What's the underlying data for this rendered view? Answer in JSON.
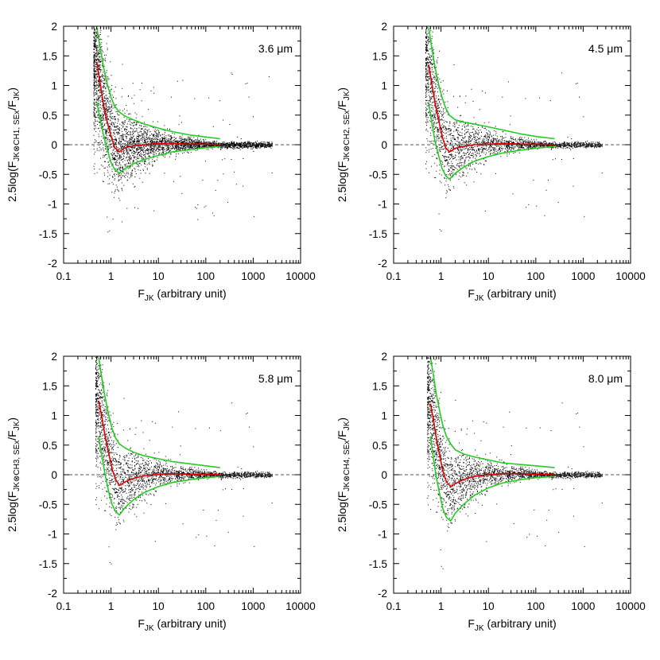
{
  "chart_data": [
    {
      "type": "scatter",
      "annotation": "3.6 μm",
      "xlabel": {
        "base": "F",
        "sub": "JK",
        "rest": " (arbitrary unit)"
      },
      "ylabel": {
        "pre": "2.5log(F",
        "sub1": "JK⊗CH1, SEx",
        "mid": "/F",
        "sub2": "JK",
        "post": ")"
      },
      "xscale": "log",
      "xlim": [
        0.1,
        10000
      ],
      "ylim": [
        -2,
        2
      ],
      "xticks": [
        "0.1",
        "1",
        "10",
        "100",
        "1000",
        "10000"
      ],
      "yticks": [
        "-2",
        "-1.5",
        "-1",
        "-0.5",
        "0",
        "0.5",
        "1",
        "1.5",
        "2"
      ],
      "reference_line": {
        "y": 0,
        "style": "dashed"
      },
      "series": [
        {
          "color": "#dd0000",
          "x": [
            0.5,
            0.6,
            0.7,
            0.85,
            1.0,
            1.2,
            1.5,
            2,
            3,
            5,
            10,
            20,
            50,
            100,
            200
          ],
          "y": [
            1.4,
            1.0,
            0.65,
            0.35,
            0.15,
            -0.05,
            -0.12,
            -0.05,
            -0.02,
            0.0,
            0.02,
            0.02,
            0.01,
            0.01,
            0.0
          ]
        },
        {
          "color": "#22cc22",
          "x": [
            0.5,
            0.6,
            0.7,
            0.85,
            1.0,
            1.2,
            1.5,
            2,
            3,
            5,
            10,
            20,
            50,
            100,
            200
          ],
          "y": [
            1.98,
            1.6,
            1.3,
            1.0,
            0.8,
            0.65,
            0.55,
            0.48,
            0.42,
            0.35,
            0.28,
            0.22,
            0.16,
            0.13,
            0.1
          ]
        },
        {
          "color": "#22cc22",
          "x": [
            0.5,
            0.6,
            0.7,
            0.85,
            1.0,
            1.2,
            1.5,
            2,
            3,
            5,
            10,
            20,
            50,
            100,
            200
          ],
          "y": [
            0.72,
            0.4,
            0.15,
            -0.1,
            -0.3,
            -0.42,
            -0.48,
            -0.4,
            -0.32,
            -0.25,
            -0.18,
            -0.12,
            -0.08,
            -0.05,
            -0.03
          ]
        }
      ]
    },
    {
      "type": "scatter",
      "annotation": "4.5 μm",
      "xlabel": {
        "base": "F",
        "sub": "JK",
        "rest": " (arbitrary unit)"
      },
      "ylabel": {
        "pre": "2.5log(F",
        "sub1": "JK⊗CH2, SEx",
        "mid": "/F",
        "sub2": "JK",
        "post": ")"
      },
      "xscale": "log",
      "xlim": [
        0.1,
        10000
      ],
      "ylim": [
        -2,
        2
      ],
      "xticks": [
        "0.1",
        "1",
        "10",
        "100",
        "1000",
        "10000"
      ],
      "yticks": [
        "-2",
        "-1.5",
        "-1",
        "-0.5",
        "0",
        "0.5",
        "1",
        "1.5",
        "2"
      ],
      "reference_line": {
        "y": 0,
        "style": "dashed"
      },
      "series": [
        {
          "color": "#dd0000",
          "x": [
            0.55,
            0.65,
            0.75,
            0.9,
            1.05,
            1.25,
            1.5,
            2,
            3,
            5,
            10,
            20,
            50,
            100,
            250
          ],
          "y": [
            1.35,
            1.0,
            0.7,
            0.4,
            0.15,
            -0.05,
            -0.12,
            -0.06,
            -0.03,
            0.0,
            0.01,
            0.02,
            0.01,
            0.01,
            0.0
          ]
        },
        {
          "color": "#22cc22",
          "x": [
            0.55,
            0.65,
            0.75,
            0.9,
            1.05,
            1.25,
            1.5,
            2,
            3,
            5,
            10,
            20,
            50,
            100,
            250
          ],
          "y": [
            1.98,
            1.6,
            1.3,
            1.0,
            0.8,
            0.62,
            0.5,
            0.42,
            0.38,
            0.35,
            0.3,
            0.25,
            0.18,
            0.14,
            0.1
          ]
        },
        {
          "color": "#22cc22",
          "x": [
            0.55,
            0.65,
            0.75,
            0.9,
            1.05,
            1.25,
            1.5,
            2,
            3,
            5,
            10,
            20,
            50,
            100,
            250
          ],
          "y": [
            0.7,
            0.35,
            0.05,
            -0.2,
            -0.4,
            -0.52,
            -0.58,
            -0.48,
            -0.38,
            -0.28,
            -0.2,
            -0.14,
            -0.09,
            -0.06,
            -0.03
          ]
        }
      ]
    },
    {
      "type": "scatter",
      "annotation": "5.8 μm",
      "xlabel": {
        "base": "F",
        "sub": "JK",
        "rest": " (arbitrary unit)"
      },
      "ylabel": {
        "pre": "2.5log(F",
        "sub1": "JK⊗CH3, SEx",
        "mid": "/F",
        "sub2": "JK",
        "post": ")"
      },
      "xscale": "log",
      "xlim": [
        0.1,
        10000
      ],
      "ylim": [
        -2,
        2
      ],
      "xticks": [
        "0.1",
        "1",
        "10",
        "100",
        "1000",
        "10000"
      ],
      "yticks": [
        "-2",
        "-1.5",
        "-1",
        "-0.5",
        "0",
        "0.5",
        "1",
        "1.5",
        "2"
      ],
      "reference_line": {
        "y": 0,
        "style": "dashed"
      },
      "series": [
        {
          "color": "#dd0000",
          "x": [
            0.55,
            0.65,
            0.75,
            0.9,
            1.05,
            1.25,
            1.5,
            2,
            3,
            5,
            10,
            20,
            50,
            100,
            200
          ],
          "y": [
            1.25,
            0.95,
            0.65,
            0.35,
            0.1,
            -0.08,
            -0.18,
            -0.12,
            -0.06,
            -0.02,
            0.01,
            0.02,
            0.01,
            0.01,
            0.0
          ]
        },
        {
          "color": "#22cc22",
          "x": [
            0.55,
            0.65,
            0.75,
            0.9,
            1.05,
            1.25,
            1.5,
            2,
            3,
            5,
            10,
            20,
            50,
            100,
            200
          ],
          "y": [
            1.98,
            1.6,
            1.3,
            1.0,
            0.78,
            0.62,
            0.52,
            0.45,
            0.38,
            0.32,
            0.27,
            0.22,
            0.18,
            0.15,
            0.12
          ]
        },
        {
          "color": "#22cc22",
          "x": [
            0.55,
            0.65,
            0.75,
            0.9,
            1.05,
            1.25,
            1.5,
            2,
            3,
            5,
            10,
            20,
            50,
            100,
            200
          ],
          "y": [
            0.65,
            0.3,
            0.0,
            -0.3,
            -0.5,
            -0.62,
            -0.68,
            -0.55,
            -0.42,
            -0.3,
            -0.2,
            -0.13,
            -0.08,
            -0.05,
            -0.03
          ]
        }
      ]
    },
    {
      "type": "scatter",
      "annotation": "8.0 μm",
      "xlabel": {
        "base": "F",
        "sub": "JK",
        "rest": " (arbitrary unit)"
      },
      "ylabel": {
        "pre": "2.5log(F",
        "sub1": "JK⊗CH4, SEx",
        "mid": "/F",
        "sub2": "JK",
        "post": ")"
      },
      "xscale": "log",
      "xlim": [
        0.1,
        10000
      ],
      "ylim": [
        -2,
        2
      ],
      "xticks": [
        "0.1",
        "1",
        "10",
        "100",
        "1000",
        "10000"
      ],
      "yticks": [
        "-2",
        "-1.5",
        "-1",
        "-0.5",
        "0",
        "0.5",
        "1",
        "1.5",
        "2"
      ],
      "reference_line": {
        "y": 0,
        "style": "dashed"
      },
      "series": [
        {
          "color": "#dd0000",
          "x": [
            0.6,
            0.7,
            0.8,
            0.95,
            1.1,
            1.3,
            1.6,
            2,
            3,
            5,
            10,
            20,
            50,
            100,
            250
          ],
          "y": [
            1.2,
            0.9,
            0.6,
            0.3,
            0.05,
            -0.12,
            -0.2,
            -0.15,
            -0.08,
            -0.03,
            0.0,
            0.02,
            0.02,
            0.01,
            0.0
          ]
        },
        {
          "color": "#22cc22",
          "x": [
            0.6,
            0.7,
            0.8,
            0.95,
            1.1,
            1.3,
            1.6,
            2,
            3,
            5,
            10,
            20,
            50,
            100,
            250
          ],
          "y": [
            1.98,
            1.65,
            1.35,
            1.05,
            0.82,
            0.65,
            0.52,
            0.42,
            0.35,
            0.3,
            0.25,
            0.2,
            0.17,
            0.15,
            0.12
          ]
        },
        {
          "color": "#22cc22",
          "x": [
            0.6,
            0.7,
            0.8,
            0.95,
            1.1,
            1.3,
            1.6,
            2,
            3,
            5,
            10,
            20,
            50,
            100,
            250
          ],
          "y": [
            0.65,
            0.25,
            -0.05,
            -0.35,
            -0.58,
            -0.72,
            -0.78,
            -0.65,
            -0.5,
            -0.35,
            -0.22,
            -0.14,
            -0.08,
            -0.05,
            -0.03
          ]
        }
      ]
    }
  ]
}
